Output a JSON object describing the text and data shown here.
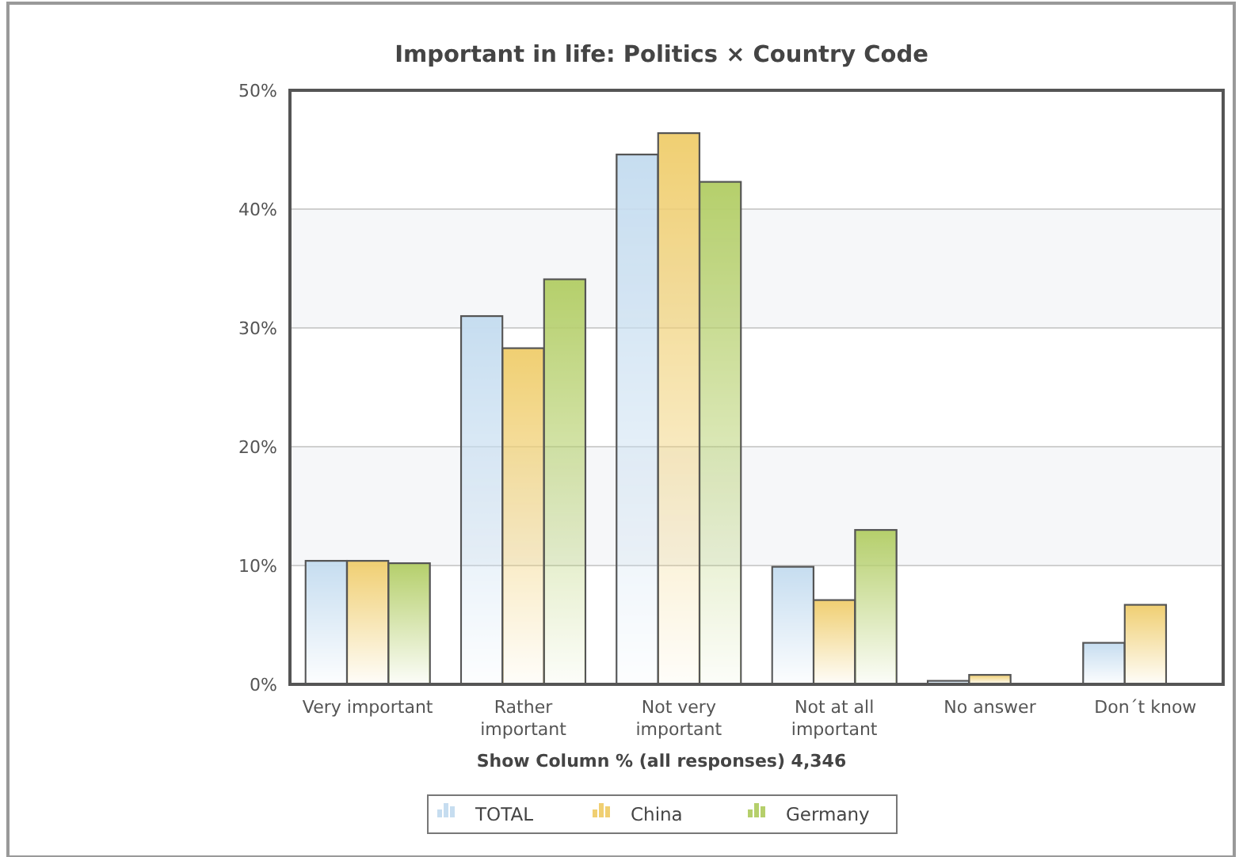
{
  "chart_data": {
    "type": "bar",
    "title": "Important in life: Politics  ×  Country Code",
    "xlabel": "Show Column % (all responses) 4,346",
    "categories": [
      "Very important",
      "Rather important",
      "Not very important",
      "Not at all important",
      "No answer",
      "Don´t know"
    ],
    "series": [
      {
        "name": "TOTAL",
        "color": "#c6ddf0",
        "values": [
          10.4,
          31.0,
          44.6,
          9.9,
          0.3,
          3.5
        ]
      },
      {
        "name": "China",
        "color": "#f0cf72",
        "values": [
          10.4,
          28.3,
          46.4,
          7.1,
          0.8,
          6.7
        ]
      },
      {
        "name": "Germany",
        "color": "#b5cf6b",
        "values": [
          10.2,
          34.1,
          42.3,
          13.0,
          0,
          0
        ]
      }
    ],
    "ylim": [
      0,
      50
    ],
    "yticks": [
      {
        "value": 0,
        "label": "0%"
      },
      {
        "value": 10,
        "label": "10%"
      },
      {
        "value": 20,
        "label": "20%"
      },
      {
        "value": 30,
        "label": "30%"
      },
      {
        "value": 40,
        "label": "40%"
      },
      {
        "value": 50,
        "label": "50%"
      }
    ],
    "grid": "y",
    "legend": "bottom"
  }
}
